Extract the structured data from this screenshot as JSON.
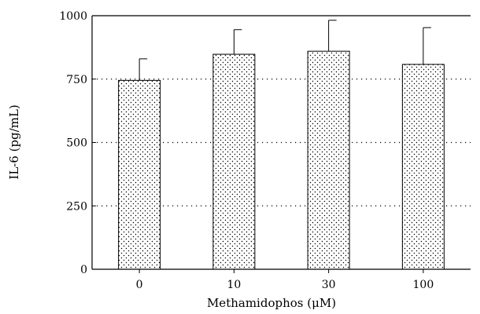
{
  "chart_data": {
    "type": "bar",
    "title": "",
    "xlabel": "Methamidophos (μM)",
    "ylabel": "IL-6 (pg/mL)",
    "categories": [
      "0",
      "10",
      "30",
      "100"
    ],
    "values": [
      745,
      848,
      860,
      808
    ],
    "error_upper": [
      830,
      945,
      982,
      953
    ],
    "ylim": [
      0,
      1000
    ],
    "yticks": [
      0,
      250,
      500,
      750,
      1000
    ],
    "grid": "horizontal dotted",
    "bar_fill": "dotted pattern",
    "colors": {
      "bar_stroke": "#000000",
      "dots": "#000000",
      "background": "#ffffff"
    }
  }
}
